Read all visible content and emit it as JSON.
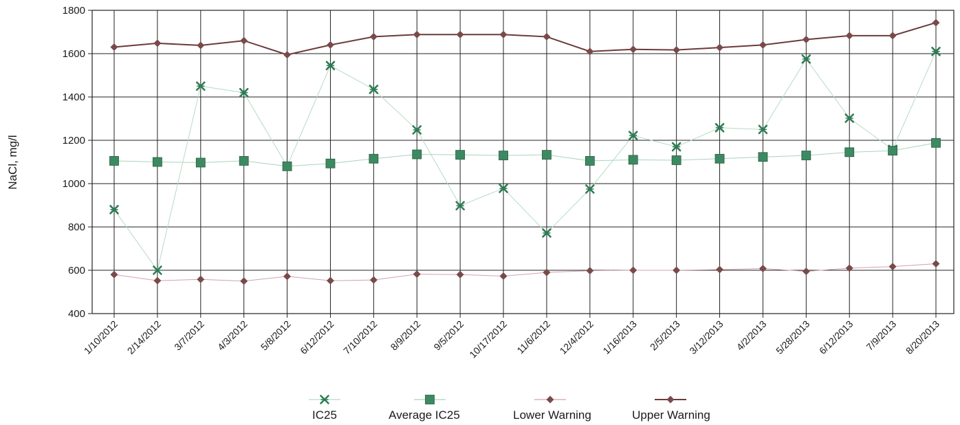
{
  "chart_data": {
    "type": "line",
    "ylabel": "NaCl, mg/l",
    "xlabel": "",
    "ylim": [
      400,
      1800
    ],
    "yticks": [
      400,
      600,
      800,
      1000,
      1200,
      1400,
      1600,
      1800
    ],
    "grid": true,
    "legend_position": "bottom",
    "categories": [
      "1/10/2012",
      "2/14/2012",
      "3/7/2012",
      "4/3/2012",
      "5/8/2012",
      "6/12/2012",
      "7/10/2012",
      "8/9/2012",
      "9/5/2012",
      "10/17/2012",
      "11/6/2012",
      "12/4/2012",
      "1/16/2013",
      "2/5/2013",
      "3/12/2013",
      "4/2/2013",
      "5/28/2013",
      "6/12/2013",
      "7/9/2013",
      "8/20/2013"
    ],
    "series": [
      {
        "name": "IC25",
        "marker": "star",
        "color": "#2e7d55",
        "line_color": "#b5dcc3",
        "values": [
          880,
          600,
          1450,
          1420,
          1080,
          1545,
          1435,
          1248,
          898,
          978,
          772,
          975,
          1222,
          1170,
          1258,
          1250,
          1575,
          1302,
          1158,
          1610
        ]
      },
      {
        "name": "Average IC25",
        "marker": "square",
        "color": "#3c8a62",
        "line_color": "#a9d4bb",
        "values": [
          1105,
          1100,
          1097,
          1105,
          1080,
          1093,
          1115,
          1135,
          1133,
          1130,
          1133,
          1105,
          1110,
          1108,
          1115,
          1123,
          1130,
          1145,
          1152,
          1188
        ]
      },
      {
        "name": "Lower Warning",
        "marker": "diamond",
        "color": "#7a4a4a",
        "line_color": "#d4a0b0",
        "values": [
          580,
          552,
          558,
          550,
          572,
          552,
          555,
          582,
          580,
          573,
          590,
          598,
          600,
          600,
          603,
          608,
          595,
          610,
          617,
          630
        ]
      },
      {
        "name": "Upper Warning",
        "marker": "diamond",
        "color": "#7a4a4a",
        "line_color": "#6b3a3a",
        "values": [
          1630,
          1648,
          1638,
          1660,
          1595,
          1640,
          1678,
          1688,
          1688,
          1688,
          1678,
          1610,
          1620,
          1617,
          1628,
          1640,
          1665,
          1683,
          1683,
          1743
        ]
      }
    ]
  }
}
